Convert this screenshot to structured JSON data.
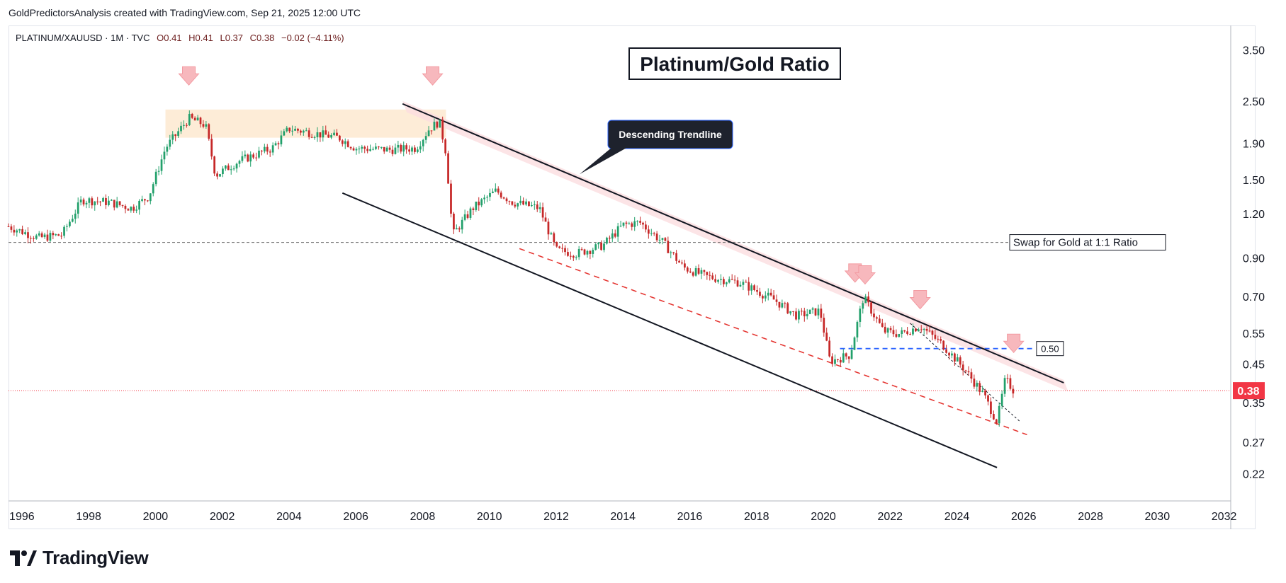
{
  "header": {
    "attribution": "GoldPredictorsAnalysis created with TradingView.com, Sep 21, 2025 12:00 UTC"
  },
  "legend": {
    "symbol": "PLATINUM/XAUUSD · 1M · TVC",
    "open": "O0.41",
    "high": "H0.41",
    "low": "L0.37",
    "close": "C0.38",
    "change": "−0.02 (−4.11%)"
  },
  "brand": {
    "name": "TradingView",
    "logo_icon": "tradingview-logo-icon"
  },
  "colors": {
    "up": "#22a06b",
    "down": "#c62828",
    "price_tag": "#f23645",
    "zone": "#fde9d0",
    "band": "#fbdde0",
    "arrow": "#f7b8bd",
    "swap_line": "#666666",
    "level_line": "#2962ff",
    "red_dash": "#e53935"
  },
  "chart_data": {
    "type": "candlestick",
    "title": "Platinum/Gold Ratio",
    "scale": "log",
    "ylim": [
      0.185,
      4.1
    ],
    "xlim": [
      1995.6,
      2032.2
    ],
    "yticks": [
      "3.50",
      "2.50",
      "1.90",
      "1.50",
      "1.20",
      "0.90",
      "0.70",
      "0.55",
      "0.45",
      "0.35",
      "0.27",
      "0.22"
    ],
    "xticks": [
      "1996",
      "1998",
      "2000",
      "2002",
      "2004",
      "2006",
      "2008",
      "2010",
      "2012",
      "2014",
      "2016",
      "2018",
      "2020",
      "2022",
      "2024",
      "2026",
      "2028",
      "2030",
      "2032"
    ],
    "last_price": {
      "value": 0.38,
      "label": "0.38"
    },
    "anchors": [
      [
        1995.6,
        1.11
      ],
      [
        1996.5,
        1.03
      ],
      [
        1997.2,
        1.05
      ],
      [
        1997.8,
        1.32
      ],
      [
        1998.6,
        1.3
      ],
      [
        1999.3,
        1.25
      ],
      [
        1999.8,
        1.35
      ],
      [
        2000.3,
        1.85
      ],
      [
        2001.0,
        2.25
      ],
      [
        2001.5,
        2.15
      ],
      [
        2001.8,
        1.55
      ],
      [
        2002.5,
        1.7
      ],
      [
        2003.5,
        1.85
      ],
      [
        2004.0,
        2.1
      ],
      [
        2004.6,
        2.05
      ],
      [
        2005.5,
        1.98
      ],
      [
        2006.0,
        1.85
      ],
      [
        2007.0,
        1.83
      ],
      [
        2007.8,
        1.85
      ],
      [
        2008.2,
        2.1
      ],
      [
        2008.5,
        2.2
      ],
      [
        2008.7,
        1.8
      ],
      [
        2008.9,
        1.05
      ],
      [
        2009.5,
        1.25
      ],
      [
        2010.2,
        1.4
      ],
      [
        2010.7,
        1.3
      ],
      [
        2011.5,
        1.25
      ],
      [
        2012.0,
        0.95
      ],
      [
        2012.6,
        0.93
      ],
      [
        2013.4,
        0.98
      ],
      [
        2014.0,
        1.12
      ],
      [
        2014.5,
        1.14
      ],
      [
        2015.2,
        1.0
      ],
      [
        2015.8,
        0.85
      ],
      [
        2016.5,
        0.8
      ],
      [
        2017.5,
        0.77
      ],
      [
        2018.5,
        0.69
      ],
      [
        2019.2,
        0.62
      ],
      [
        2019.9,
        0.64
      ],
      [
        2020.2,
        0.46
      ],
      [
        2020.8,
        0.48
      ],
      [
        2021.2,
        0.7
      ],
      [
        2021.8,
        0.56
      ],
      [
        2022.3,
        0.55
      ],
      [
        2022.9,
        0.58
      ],
      [
        2023.6,
        0.51
      ],
      [
        2024.2,
        0.44
      ],
      [
        2024.8,
        0.37
      ],
      [
        2025.2,
        0.31
      ],
      [
        2025.45,
        0.41
      ],
      [
        2025.7,
        0.38
      ]
    ],
    "zone": {
      "x": [
        2000.3,
        2008.7
      ],
      "y": [
        1.98,
        2.38
      ]
    },
    "trendline": {
      "label": "Descending Trendline",
      "from": [
        2007.4,
        2.47
      ],
      "to": [
        2027.2,
        0.4
      ]
    },
    "channel_lower": {
      "from": [
        2005.6,
        1.38
      ],
      "to": [
        2025.2,
        0.23
      ]
    },
    "lower_dashed": {
      "from": [
        2010.9,
        0.96
      ],
      "to": [
        2026.1,
        0.285
      ]
    },
    "inner_dashed": {
      "from": [
        2022.6,
        0.59
      ],
      "to": [
        2025.9,
        0.31
      ]
    },
    "swap_line": {
      "y": 1.0,
      "label": "Swap for Gold at 1:1 Ratio"
    },
    "level_line": {
      "y": 0.5,
      "x_from": 2020.5,
      "x_to": 2026.3,
      "label": "0.50"
    },
    "arrows": [
      {
        "x": 2001.0,
        "y": 2.95
      },
      {
        "x": 2008.3,
        "y": 2.95
      },
      {
        "x": 2020.95,
        "y": 0.815
      },
      {
        "x": 2021.25,
        "y": 0.805
      },
      {
        "x": 2022.9,
        "y": 0.685
      },
      {
        "x": 2025.7,
        "y": 0.515
      }
    ]
  }
}
